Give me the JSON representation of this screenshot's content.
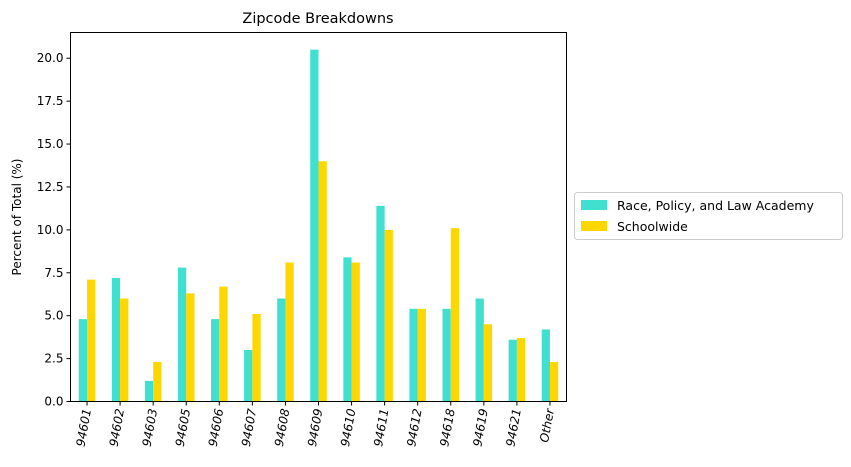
{
  "chart_data": {
    "type": "bar",
    "title": "Zipcode Breakdowns",
    "xlabel": "",
    "ylabel": "Percent of Total (%)",
    "ylim": [
      0,
      21.5
    ],
    "yticks": [
      "0.0",
      "2.5",
      "5.0",
      "7.5",
      "10.0",
      "12.5",
      "15.0",
      "17.5",
      "20.0"
    ],
    "categories": [
      "94601",
      "94602",
      "94603",
      "94605",
      "94606",
      "94607",
      "94608",
      "94609",
      "94610",
      "94611",
      "94612",
      "94618",
      "94619",
      "94621",
      "Other"
    ],
    "series": [
      {
        "name": "Race, Policy, and Law Academy",
        "color": "#40E0D0",
        "values": [
          4.8,
          7.2,
          1.2,
          7.8,
          4.8,
          3.0,
          6.0,
          20.5,
          8.4,
          11.4,
          5.4,
          5.4,
          6.0,
          3.6,
          4.2
        ]
      },
      {
        "name": "Schoolwide",
        "color": "#FFD700",
        "values": [
          7.1,
          6.0,
          2.3,
          6.3,
          6.7,
          5.1,
          8.1,
          14.0,
          8.1,
          10.0,
          5.4,
          10.1,
          4.5,
          3.7,
          2.3
        ]
      }
    ],
    "legend_position": "center-right-outside",
    "grid": false
  }
}
